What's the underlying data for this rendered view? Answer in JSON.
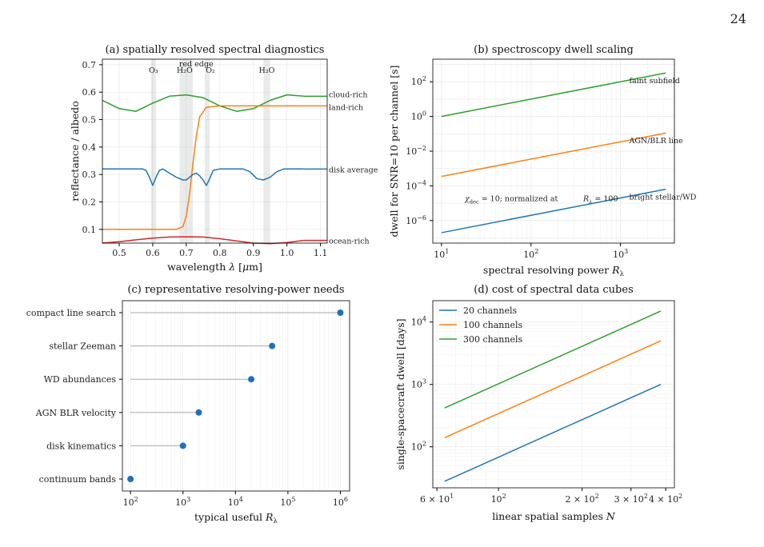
{
  "page_number": "24",
  "colors": {
    "blue": "#1f77b4",
    "orange": "#ff7f0e",
    "green": "#2ca02c",
    "red": "#d62728",
    "lollipop": "#1f6fbf"
  },
  "chart_data": [
    {
      "type": "line",
      "title": "(a) spatially resolved spectral diagnostics",
      "xlabel": "wavelength λ [μm]",
      "ylabel": "reflectance / albedo",
      "xlim": [
        0.45,
        1.12
      ],
      "ylim": [
        0.05,
        0.72
      ],
      "xticks": [
        "0.5",
        "0.6",
        "0.7",
        "0.8",
        "0.9",
        "1.0",
        "1.1"
      ],
      "yticks": [
        "0.1",
        "0.2",
        "0.3",
        "0.4",
        "0.5",
        "0.6",
        "0.7"
      ],
      "bands": [
        {
          "label": "O₃",
          "lo": 0.595,
          "hi": 0.61
        },
        {
          "label": "H₂O",
          "lo": 0.68,
          "hi": 0.72
        },
        {
          "label": "O₂",
          "lo": 0.755,
          "hi": 0.77
        },
        {
          "label": "H₂O",
          "lo": 0.93,
          "hi": 0.95
        }
      ],
      "band_annotation": "red edge",
      "series": [
        {
          "name": "cloud-rich",
          "color": "green",
          "x": [
            0.45,
            0.5,
            0.55,
            0.6,
            0.65,
            0.7,
            0.75,
            0.8,
            0.85,
            0.9,
            0.95,
            1.0,
            1.05
          ],
          "y": [
            0.57,
            0.54,
            0.53,
            0.56,
            0.585,
            0.59,
            0.58,
            0.55,
            0.53,
            0.54,
            0.57,
            0.59,
            0.585
          ]
        },
        {
          "name": "land-rich",
          "color": "orange",
          "x": [
            0.45,
            0.6,
            0.67,
            0.69,
            0.7,
            0.71,
            0.72,
            0.73,
            0.74,
            0.76,
            0.8,
            1.05
          ],
          "y": [
            0.1,
            0.1,
            0.1,
            0.11,
            0.15,
            0.23,
            0.34,
            0.44,
            0.51,
            0.545,
            0.55,
            0.55
          ]
        },
        {
          "name": "disk average",
          "color": "blue",
          "x": [
            0.45,
            0.57,
            0.58,
            0.59,
            0.6,
            0.61,
            0.62,
            0.63,
            0.65,
            0.67,
            0.69,
            0.7,
            0.71,
            0.72,
            0.73,
            0.74,
            0.75,
            0.76,
            0.77,
            0.78,
            0.8,
            0.87,
            0.89,
            0.91,
            0.93,
            0.95,
            0.97,
            0.99,
            1.05
          ],
          "y": [
            0.32,
            0.32,
            0.315,
            0.29,
            0.26,
            0.29,
            0.315,
            0.32,
            0.305,
            0.29,
            0.28,
            0.28,
            0.29,
            0.3,
            0.305,
            0.295,
            0.28,
            0.26,
            0.285,
            0.315,
            0.32,
            0.32,
            0.31,
            0.285,
            0.28,
            0.29,
            0.31,
            0.32,
            0.32
          ]
        },
        {
          "name": "ocean-rich",
          "color": "red",
          "x": [
            0.45,
            0.5,
            0.55,
            0.6,
            0.65,
            0.7,
            0.75,
            0.8,
            0.85,
            0.9,
            0.95,
            1.0,
            1.05
          ],
          "y": [
            0.05,
            0.055,
            0.062,
            0.068,
            0.072,
            0.073,
            0.072,
            0.066,
            0.058,
            0.05,
            0.048,
            0.052,
            0.06
          ]
        }
      ]
    },
    {
      "type": "line",
      "title": "(b) spectroscopy dwell scaling",
      "xlabel": "spectral resolving power R_λ",
      "ylabel": "dwell for SNR=10 per channel [s]",
      "xscale": "log",
      "yscale": "log",
      "xlim": [
        8,
        4000
      ],
      "ylim": [
        5e-08,
        2000
      ],
      "xticks": [
        {
          "v": 10,
          "b": "10",
          "e": "1"
        },
        {
          "v": 100,
          "b": "10",
          "e": "2"
        },
        {
          "v": 1000,
          "b": "10",
          "e": "3"
        }
      ],
      "yticks": [
        {
          "v": 1e-06,
          "b": "10",
          "e": "−6"
        },
        {
          "v": 0.0001,
          "b": "10",
          "e": "−4"
        },
        {
          "v": 0.01,
          "b": "10",
          "e": "−2"
        },
        {
          "v": 1,
          "b": "10",
          "e": "0"
        },
        {
          "v": 100,
          "b": "10",
          "e": "2"
        }
      ],
      "annotation": "χ_dec = 10; normalized at R_λ = 100",
      "series": [
        {
          "name": "faint subfield",
          "color": "green",
          "x": [
            10,
            3200
          ],
          "y": [
            1.0,
            320
          ]
        },
        {
          "name": "AGN/BLR line",
          "color": "orange",
          "x": [
            10,
            3200
          ],
          "y": [
            0.00035,
            0.11
          ]
        },
        {
          "name": "bright stellar/WD",
          "color": "blue",
          "x": [
            10,
            3200
          ],
          "y": [
            2e-07,
            6.4e-05
          ]
        }
      ]
    },
    {
      "type": "lollipop",
      "title": "(c) representative resolving-power needs",
      "xlabel": "typical useful R_λ",
      "xscale": "log",
      "xlim": [
        70,
        1500000.0
      ],
      "xticks": [
        {
          "v": 100,
          "b": "10",
          "e": "2"
        },
        {
          "v": 1000,
          "b": "10",
          "e": "3"
        },
        {
          "v": 10000,
          "b": "10",
          "e": "4"
        },
        {
          "v": 100000,
          "b": "10",
          "e": "5"
        },
        {
          "v": 1000000,
          "b": "10",
          "e": "6"
        }
      ],
      "categories": [
        "compact line search",
        "stellar Zeeman",
        "WD abundances",
        "AGN BLR velocity",
        "disk kinematics",
        "continuum bands"
      ],
      "values": [
        1000000,
        50000,
        20000,
        2000,
        1000,
        100
      ],
      "baseline": 100
    },
    {
      "type": "line",
      "title": "(d) cost of spectral data cubes",
      "xlabel": "linear spatial samples N",
      "ylabel": "single-spacecraft dwell [days]",
      "xscale": "log",
      "yscale": "log",
      "xlim": [
        58,
        430
      ],
      "ylim": [
        22,
        22000
      ],
      "xticks": [
        {
          "v": 60,
          "b": "6 × 10",
          "e": "1"
        },
        {
          "v": 100,
          "b": "10",
          "e": "2"
        },
        {
          "v": 200,
          "b": "2 × 10",
          "e": "2"
        },
        {
          "v": 300,
          "b": "3 × 10",
          "e": "2"
        },
        {
          "v": 400,
          "b": "4 × 10",
          "e": "2"
        }
      ],
      "yticks": [
        {
          "v": 100,
          "b": "10",
          "e": "2"
        },
        {
          "v": 1000,
          "b": "10",
          "e": "3"
        },
        {
          "v": 10000,
          "b": "10",
          "e": "4"
        }
      ],
      "legend_position": "top-left",
      "series": [
        {
          "name": "20 channels",
          "color": "blue",
          "x": [
            64,
            384
          ],
          "y": [
            28,
            1000
          ]
        },
        {
          "name": "100 channels",
          "color": "orange",
          "x": [
            64,
            384
          ],
          "y": [
            140,
            5000
          ]
        },
        {
          "name": "300 channels",
          "color": "green",
          "x": [
            64,
            384
          ],
          "y": [
            420,
            15000
          ]
        }
      ]
    }
  ]
}
